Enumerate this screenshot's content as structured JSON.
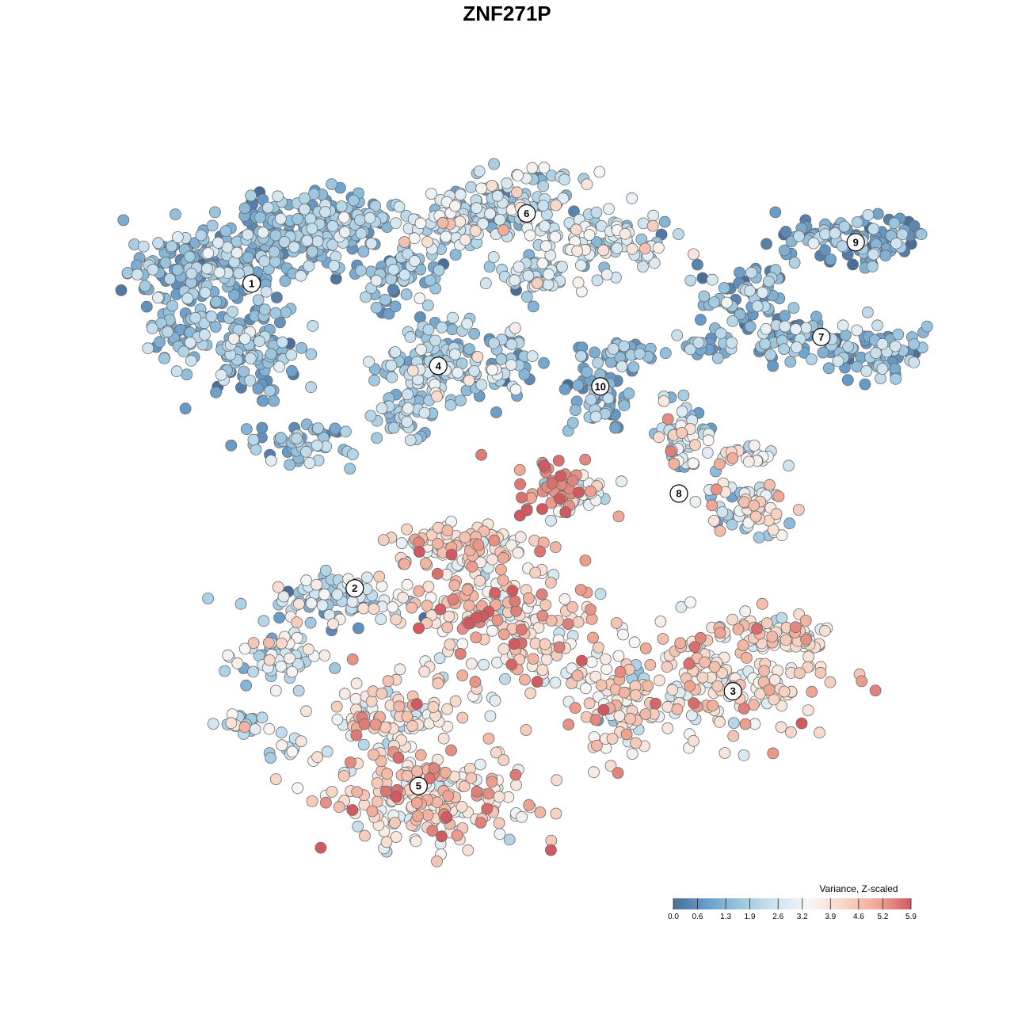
{
  "chart_data": {
    "type": "scatter",
    "title": "ZNF271P",
    "xlabel": "",
    "ylabel": "",
    "grid": false,
    "legend_placement": "bottom-right",
    "colorbar": {
      "title": "Variance, Z-scaled",
      "ticks": [
        "0.0",
        "0.6",
        "1.3",
        "1.9",
        "2.6",
        "3.2",
        "3.9",
        "4.6",
        "5.2",
        "5.9"
      ],
      "range": [
        0.0,
        5.9
      ],
      "colors": [
        "#4a6e9a",
        "#6a9fcb",
        "#9cc7e0",
        "#cfe4f0",
        "#f7f6f4",
        "#f8d7c8",
        "#f0a996",
        "#d05a5f"
      ]
    },
    "clusters": [
      {
        "label": "1",
        "x": -5.2,
        "y": 5.1,
        "mean_value": 1.4
      },
      {
        "label": "2",
        "x": -3.1,
        "y": -2.3,
        "mean_value": 2.4
      },
      {
        "label": "3",
        "x": 4.6,
        "y": -4.8,
        "mean_value": 3.8
      },
      {
        "label": "4",
        "x": -1.4,
        "y": 3.1,
        "mean_value": 1.9
      },
      {
        "label": "5",
        "x": -1.8,
        "y": -7.1,
        "mean_value": 3.9
      },
      {
        "label": "6",
        "x": 0.4,
        "y": 6.8,
        "mean_value": 2.3
      },
      {
        "label": "7",
        "x": 6.4,
        "y": 3.8,
        "mean_value": 1.3
      },
      {
        "label": "8",
        "x": 3.5,
        "y": 0.0,
        "mean_value": 2.8
      },
      {
        "label": "9",
        "x": 7.1,
        "y": 6.1,
        "mean_value": 1.0
      },
      {
        "label": "10",
        "x": 1.9,
        "y": 2.6,
        "mean_value": 1.2
      }
    ]
  }
}
